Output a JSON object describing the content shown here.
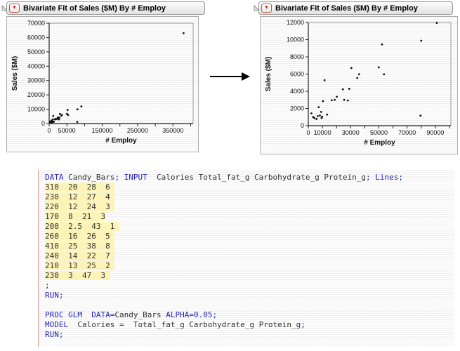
{
  "panels": [
    {
      "title": "Bivariate Fit of Sales ($M) By # Employ"
    },
    {
      "title": "Bivariate Fit of Sales ($M) By # Employ"
    }
  ],
  "icons": {
    "red_triangle": "▼"
  },
  "chart_data": {
    "type": "scatter",
    "xlabel": "# Employ",
    "ylabel": "Sales ($M)",
    "points": [
      [
        2200,
        1430
      ],
      [
        3400,
        1000
      ],
      [
        4300,
        890
      ],
      [
        5800,
        780
      ],
      [
        6700,
        1100
      ],
      [
        7400,
        2150
      ],
      [
        8200,
        1180
      ],
      [
        9100,
        1600
      ],
      [
        9400,
        890
      ],
      [
        9800,
        1050
      ],
      [
        10400,
        2850
      ],
      [
        11500,
        5280
      ],
      [
        13300,
        1290
      ],
      [
        16600,
        2960
      ],
      [
        18700,
        3010
      ],
      [
        20200,
        3360
      ],
      [
        24500,
        4230
      ],
      [
        25400,
        3010
      ],
      [
        28000,
        2930
      ],
      [
        29000,
        4280
      ],
      [
        30500,
        6700
      ],
      [
        34700,
        5540
      ],
      [
        36000,
        5980
      ],
      [
        49900,
        6780
      ],
      [
        52200,
        9450
      ],
      [
        53600,
        5980
      ],
      [
        79500,
        1160
      ],
      [
        80000,
        9880
      ],
      [
        91000,
        11950
      ],
      [
        380000,
        63000
      ]
    ],
    "plots": [
      {
        "xlim": [
          0,
          407000
        ],
        "ylim": [
          0,
          70000
        ],
        "xtick_step": 50000,
        "xtick_max": 400000,
        "xtick_labels": [
          0,
          50000,
          150000,
          250000,
          350000
        ],
        "ytick_step": 10000,
        "ytick_max": 70000
      },
      {
        "xlim": [
          0,
          101000
        ],
        "ylim": [
          0,
          12000
        ],
        "xtick_step": 10000,
        "xtick_max": 100000,
        "xtick_labels": [
          0,
          10000,
          30000,
          50000,
          70000,
          90000
        ],
        "ytick_step": 2000,
        "ytick_max": 12000
      }
    ]
  },
  "code": {
    "lines": [
      {
        "highlight": false,
        "tokens": [
          {
            "c": "k",
            "t": "DATA"
          },
          {
            "c": "t",
            "t": " Candy_Bars"
          },
          {
            "c": "k",
            "t": ";"
          },
          {
            "c": "t",
            "t": " "
          },
          {
            "c": "k",
            "t": "INPUT"
          },
          {
            "c": "t",
            "t": "  Calories Total_fat_g Carbohydrate_g Protein_g"
          },
          {
            "c": "k",
            "t": ";"
          },
          {
            "c": "t",
            "t": " "
          },
          {
            "c": "k",
            "t": "Lines;"
          }
        ]
      },
      {
        "highlight": true,
        "tokens": [
          {
            "c": "t",
            "t": "310  20  28  6 "
          }
        ]
      },
      {
        "highlight": true,
        "tokens": [
          {
            "c": "t",
            "t": "230  12  27  4 "
          }
        ]
      },
      {
        "highlight": true,
        "tokens": [
          {
            "c": "t",
            "t": "220  12  24  3 "
          }
        ]
      },
      {
        "highlight": true,
        "tokens": [
          {
            "c": "t",
            "t": "170  8  21  3"
          }
        ]
      },
      {
        "highlight": true,
        "tokens": [
          {
            "c": "t",
            "t": "200  2.5  43  1 "
          }
        ]
      },
      {
        "highlight": true,
        "tokens": [
          {
            "c": "t",
            "t": "260  16  26  5 "
          }
        ]
      },
      {
        "highlight": true,
        "tokens": [
          {
            "c": "t",
            "t": "410  25  38  8 "
          }
        ]
      },
      {
        "highlight": true,
        "tokens": [
          {
            "c": "t",
            "t": "240  14  22  7 "
          }
        ]
      },
      {
        "highlight": true,
        "tokens": [
          {
            "c": "t",
            "t": "210  13  25  2 "
          }
        ]
      },
      {
        "highlight": true,
        "tokens": [
          {
            "c": "t",
            "t": "230  3  47  3 "
          }
        ]
      },
      {
        "highlight": false,
        "tokens": [
          {
            "c": "t",
            "t": ";"
          }
        ]
      },
      {
        "highlight": false,
        "tokens": [
          {
            "c": "k",
            "t": "RUN;"
          }
        ]
      },
      {
        "highlight": false,
        "tokens": []
      },
      {
        "highlight": false,
        "tokens": [
          {
            "c": "k",
            "t": "PROC GLM"
          },
          {
            "c": "t",
            "t": "  "
          },
          {
            "c": "k",
            "t": "DATA="
          },
          {
            "c": "t",
            "t": "Candy_Bars "
          },
          {
            "c": "k",
            "t": "ALPHA=0.05;"
          }
        ]
      },
      {
        "highlight": false,
        "tokens": [
          {
            "c": "k",
            "t": "MODEL"
          },
          {
            "c": "t",
            "t": "  Calories =  Total_fat_g Carbohydrate_g Protein_g"
          },
          {
            "c": "k",
            "t": ";"
          }
        ]
      },
      {
        "highlight": false,
        "tokens": [
          {
            "c": "k",
            "t": "RUN;"
          }
        ]
      }
    ]
  }
}
